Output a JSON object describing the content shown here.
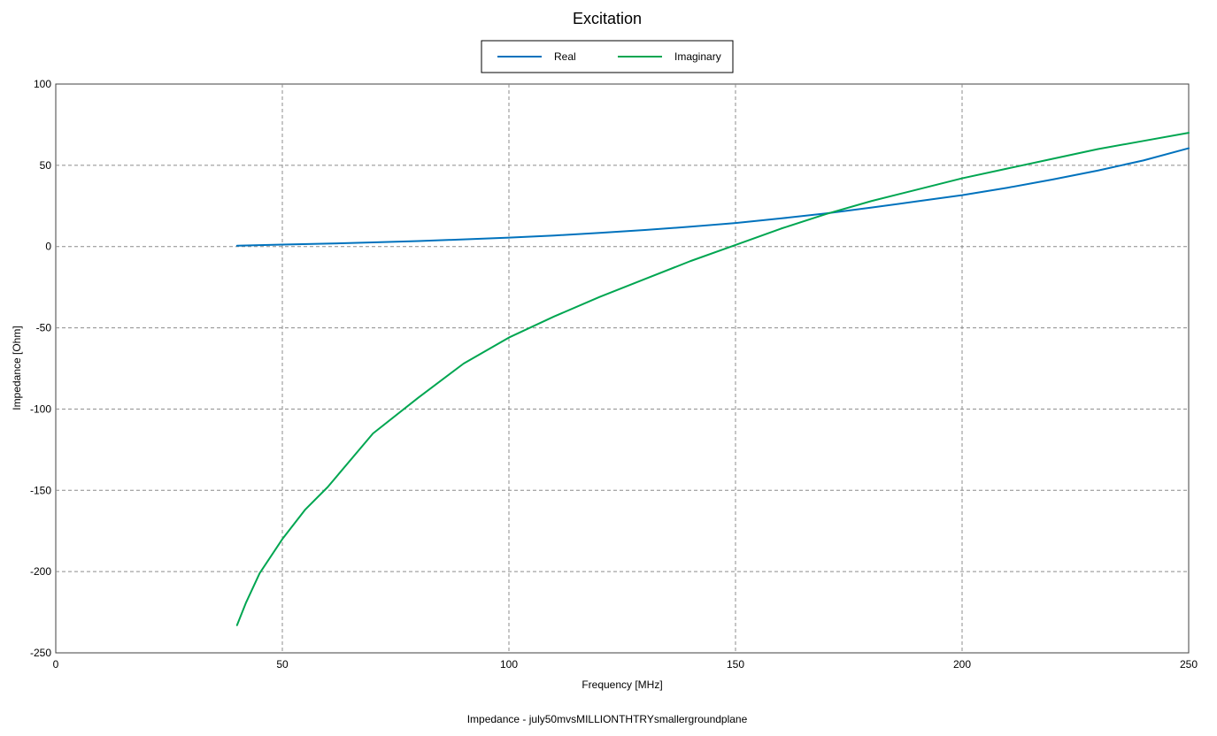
{
  "chart_data": {
    "type": "line",
    "title": "Excitation",
    "xlabel": "Frequency [MHz]",
    "ylabel": "Impedance [Ohm]",
    "footer": "Impedance - july50mvsMILLIONTHTRYsmallergroundplane",
    "xlim": [
      0,
      250
    ],
    "ylim": [
      -250,
      100
    ],
    "xticks": [
      0,
      50,
      100,
      150,
      200,
      250
    ],
    "yticks": [
      100,
      50,
      0,
      -50,
      -100,
      -150,
      -200,
      -250
    ],
    "grid": true,
    "legend_position": "top-center",
    "series": [
      {
        "name": "Real",
        "color": "#0072bd",
        "x": [
          40,
          50,
          60,
          70,
          80,
          90,
          100,
          110,
          120,
          130,
          140,
          150,
          160,
          170,
          180,
          190,
          200,
          210,
          220,
          230,
          240,
          250
        ],
        "values": [
          0.5,
          1.2,
          1.8,
          2.6,
          3.4,
          4.4,
          5.5,
          6.8,
          8.4,
          10.2,
          12.2,
          14.5,
          17.3,
          20.4,
          24.0,
          27.8,
          31.6,
          36.2,
          41.3,
          46.8,
          53.0,
          60.5
        ]
      },
      {
        "name": "Imaginary",
        "color": "#00a651",
        "x": [
          40,
          42,
          45,
          50,
          55,
          60,
          70,
          80,
          90,
          100,
          110,
          120,
          130,
          140,
          150,
          160,
          170,
          180,
          190,
          200,
          210,
          220,
          230,
          240,
          250
        ],
        "values": [
          -233,
          -219,
          -201,
          -180,
          -162,
          -148,
          -115,
          -93,
          -72,
          -56,
          -43,
          -31,
          -20,
          -9,
          1,
          11,
          20,
          28,
          35,
          42,
          48,
          54,
          60,
          65,
          70
        ]
      }
    ]
  }
}
